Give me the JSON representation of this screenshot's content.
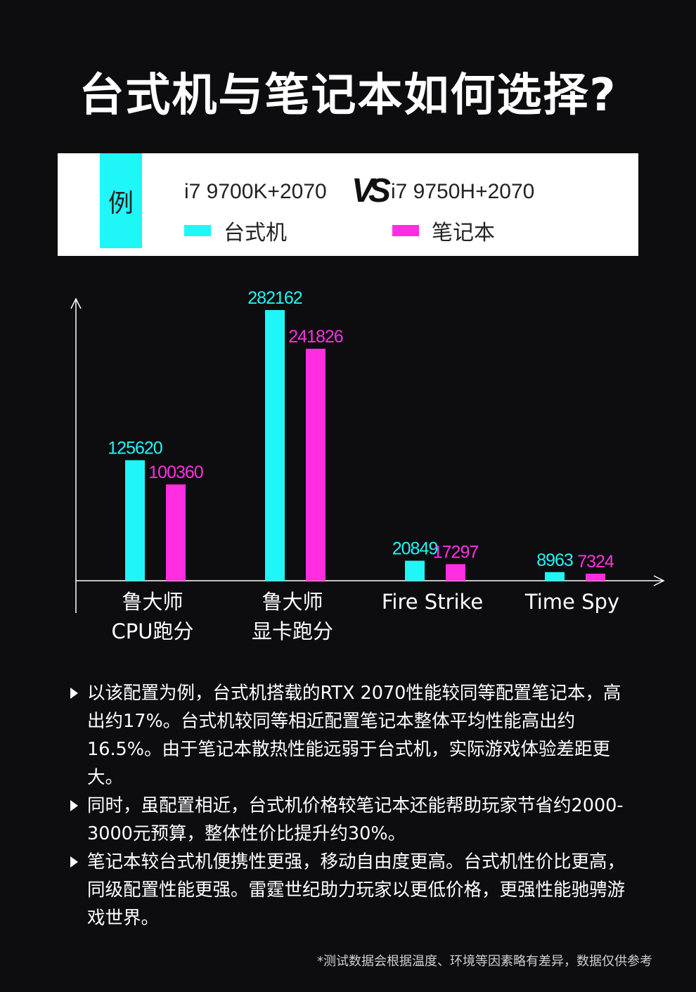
{
  "title": "台式机与笔记本如何选择?",
  "legend": {
    "tag": "例",
    "left_config": "i7 9700K+2070",
    "vs": "VS",
    "right_config": "i7 9750H+2070",
    "desktop_label": "台式机",
    "laptop_label": "笔记本",
    "desktop_color": "#1ff6f8",
    "laptop_color": "#ff2ee0"
  },
  "chart_data": {
    "type": "bar",
    "categories": [
      [
        "鲁大师",
        "CPU跑分"
      ],
      [
        "鲁大师",
        "显卡跑分"
      ],
      [
        "Fire Strike"
      ],
      [
        "Time Spy"
      ]
    ],
    "series": [
      {
        "name": "台式机",
        "values": [
          125620,
          282162,
          20849,
          8963
        ],
        "color": "#1ff6f8"
      },
      {
        "name": "笔记本",
        "values": [
          100360,
          241826,
          17297,
          7324
        ],
        "color": "#ff2ee0"
      }
    ],
    "title": "",
    "xlabel": "",
    "ylabel": "",
    "ylim": [
      0,
      300000
    ],
    "grid": false,
    "data_labels": true
  },
  "notes": [
    "以该配置为例，台式机搭载的RTX 2070性能较同等配置笔记本，高出约17%。台式机较同等相近配置笔记本整体平均性能高出约16.5%。由于笔记本散热性能远弱于台式机，实际游戏体验差距更大。",
    "同时，虽配置相近，台式机价格较笔记本还能帮助玩家节省约2000-3000元预算，整体性价比提升约30%。",
    "笔记本较台式机便携性更强，移动自由度更高。台式机性价比更高，同级配置性能更强。雷霆世纪助力玩家以更低价格，更强性能驰骋游戏世界。"
  ],
  "footnote": "*测试数据会根据温度、环境等因素略有差异，数据仅供参考"
}
